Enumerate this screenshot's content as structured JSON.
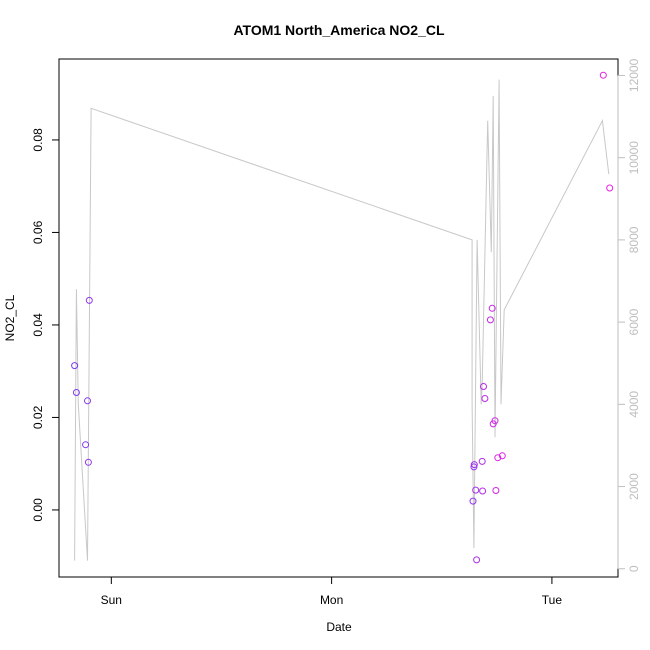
{
  "chart_data": {
    "type": "scatter",
    "title": "ATOM1 North_America NO2_CL",
    "xlabel": "Date",
    "ylabel": "NO2_CL",
    "xlim_hours": [
      -5.7,
      55.2
    ],
    "x_ticks": [
      {
        "label": "Sun",
        "hour": 0
      },
      {
        "label": "Mon",
        "hour": 24
      },
      {
        "label": "Tue",
        "hour": 48
      }
    ],
    "ylim": [
      -0.0145,
      0.0975
    ],
    "y_ticks": [
      {
        "label": "0.00",
        "value": 0.0
      },
      {
        "label": "0.02",
        "value": 0.02
      },
      {
        "label": "0.04",
        "value": 0.04
      },
      {
        "label": "0.06",
        "value": 0.06
      },
      {
        "label": "0.08",
        "value": 0.08
      }
    ],
    "y2lim": [
      -200,
      12400
    ],
    "y2_ticks": [
      {
        "label": "0",
        "value": 0
      },
      {
        "label": "2000",
        "value": 2000
      },
      {
        "label": "4000",
        "value": 4000
      },
      {
        "label": "6000",
        "value": 6000
      },
      {
        "label": "8000",
        "value": 8000
      },
      {
        "label": "10000",
        "value": 10000
      },
      {
        "label": "12000",
        "value": 12000
      }
    ],
    "grid": false,
    "colors": {
      "axis": "#000000",
      "secondary_axis": "#bebebe",
      "line": "#c8c8c8",
      "point_start": "#7a3cf0",
      "point_end": "#ea1fe2"
    },
    "points": [
      {
        "hour": -4.0,
        "value": 0.0312
      },
      {
        "hour": -3.8,
        "value": 0.0254
      },
      {
        "hour": -2.8,
        "value": 0.0141
      },
      {
        "hour": -2.6,
        "value": 0.0236
      },
      {
        "hour": -2.5,
        "value": 0.0103
      },
      {
        "hour": -2.4,
        "value": 0.0453
      },
      {
        "hour": 39.4,
        "value": 0.0019
      },
      {
        "hour": 39.5,
        "value": 0.0093
      },
      {
        "hour": 39.55,
        "value": 0.0098
      },
      {
        "hour": 39.7,
        "value": 0.0043
      },
      {
        "hour": 39.8,
        "value": -0.0108
      },
      {
        "hour": 40.4,
        "value": 0.0105
      },
      {
        "hour": 40.45,
        "value": 0.0041
      },
      {
        "hour": 40.55,
        "value": 0.0267
      },
      {
        "hour": 40.7,
        "value": 0.0241
      },
      {
        "hour": 41.3,
        "value": 0.0411
      },
      {
        "hour": 41.5,
        "value": 0.0436
      },
      {
        "hour": 41.6,
        "value": 0.0186
      },
      {
        "hour": 41.8,
        "value": 0.0193
      },
      {
        "hour": 41.9,
        "value": 0.0042
      },
      {
        "hour": 42.1,
        "value": 0.0113
      },
      {
        "hour": 42.6,
        "value": 0.0117
      },
      {
        "hour": 53.6,
        "value": 0.094
      },
      {
        "hour": 54.3,
        "value": 0.0696
      }
    ],
    "line_series": [
      {
        "hour": -4.0,
        "value": 200
      },
      {
        "hour": -3.8,
        "value": 6800
      },
      {
        "hour": -3.6,
        "value": 4000
      },
      {
        "hour": -2.6,
        "value": 200
      },
      {
        "hour": -2.2,
        "value": 11200
      },
      {
        "hour": 39.3,
        "value": 8000
      },
      {
        "hour": 39.3,
        "value": 4000
      },
      {
        "hour": 39.5,
        "value": 500
      },
      {
        "hour": 39.85,
        "value": 8000
      },
      {
        "hour": 40.3,
        "value": 4000
      },
      {
        "hour": 40.4,
        "value": 4500
      },
      {
        "hour": 41.0,
        "value": 10900
      },
      {
        "hour": 41.4,
        "value": 7700
      },
      {
        "hour": 41.6,
        "value": 11500
      },
      {
        "hour": 41.8,
        "value": 3200
      },
      {
        "hour": 42.25,
        "value": 11900
      },
      {
        "hour": 42.45,
        "value": 4000
      },
      {
        "hour": 42.8,
        "value": 6300
      },
      {
        "hour": 53.5,
        "value": 10900
      },
      {
        "hour": 54.2,
        "value": 9600
      }
    ]
  }
}
